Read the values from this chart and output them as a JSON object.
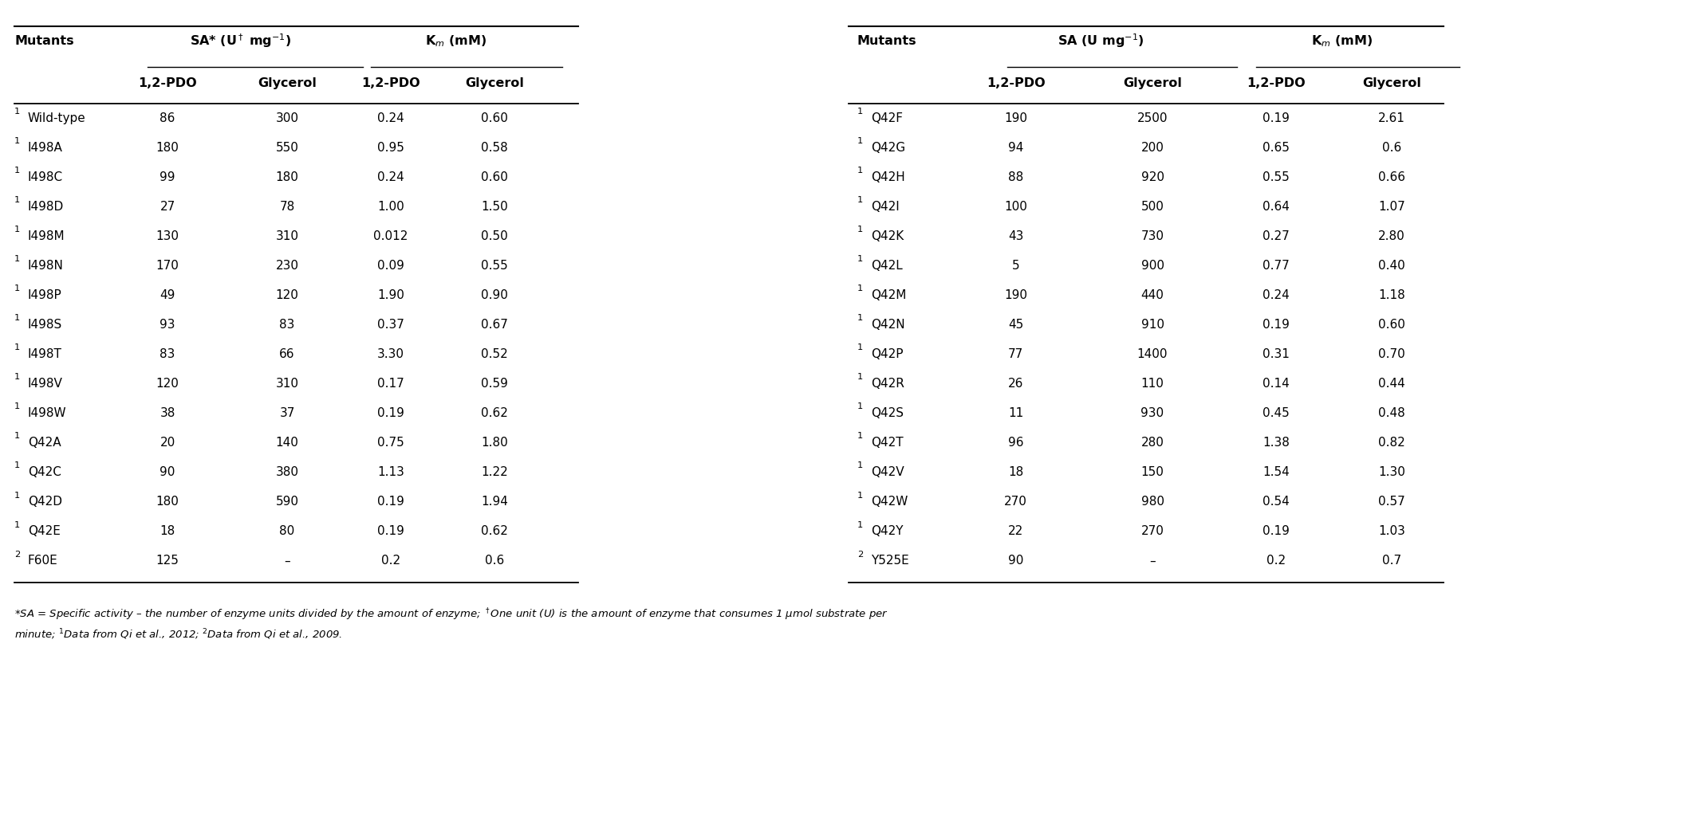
{
  "left_table": {
    "mutants": [
      "1Wild-type",
      "1I498A",
      "1I498C",
      "1I498D",
      "1I498M",
      "1I498N",
      "1I498P",
      "1I498S",
      "1I498T",
      "1I498V",
      "1I498W",
      "1Q42A",
      "1Q42C",
      "1Q42D",
      "1Q42E",
      "2F60E"
    ],
    "sa_pdo": [
      "86",
      "180",
      "99",
      "27",
      "130",
      "170",
      "49",
      "93",
      "83",
      "120",
      "38",
      "20",
      "90",
      "180",
      "18",
      "125"
    ],
    "sa_gly": [
      "300",
      "550",
      "180",
      "78",
      "310",
      "230",
      "120",
      "83",
      "66",
      "310",
      "37",
      "140",
      "380",
      "590",
      "80",
      "–"
    ],
    "km_pdo": [
      "0.24",
      "0.95",
      "0.24",
      "1.00",
      "0.012",
      "0.09",
      "1.90",
      "0.37",
      "3.30",
      "0.17",
      "0.19",
      "0.75",
      "1.13",
      "0.19",
      "0.19",
      "0.2"
    ],
    "km_gly": [
      "0.60",
      "0.58",
      "0.60",
      "1.50",
      "0.50",
      "0.55",
      "0.90",
      "0.67",
      "0.52",
      "0.59",
      "0.62",
      "1.80",
      "1.22",
      "1.94",
      "0.62",
      "0.6"
    ]
  },
  "right_table": {
    "mutants": [
      "1Q42F",
      "1Q42G",
      "1Q42H",
      "1Q42I",
      "1Q42K",
      "1Q42L",
      "1Q42M",
      "1Q42N",
      "1Q42P",
      "1Q42R",
      "1Q42S",
      "1Q42T",
      "1Q42V",
      "1Q42W",
      "1Q42Y",
      "2Y525E"
    ],
    "sa_pdo": [
      "190",
      "94",
      "88",
      "100",
      "43",
      "5",
      "190",
      "45",
      "77",
      "26",
      "11",
      "96",
      "18",
      "270",
      "22",
      "90"
    ],
    "sa_gly": [
      "2500",
      "200",
      "920",
      "500",
      "730",
      "900",
      "440",
      "910",
      "1400",
      "110",
      "930",
      "280",
      "150",
      "980",
      "270",
      "–"
    ],
    "km_pdo": [
      "0.19",
      "0.65",
      "0.55",
      "0.64",
      "0.27",
      "0.77",
      "0.24",
      "0.19",
      "0.31",
      "0.14",
      "0.45",
      "1.38",
      "1.54",
      "0.54",
      "0.19",
      "0.2"
    ],
    "km_gly": [
      "2.61",
      "0.6",
      "0.66",
      "1.07",
      "2.80",
      "0.40",
      "1.18",
      "0.60",
      "0.70",
      "0.44",
      "0.48",
      "0.82",
      "1.30",
      "0.57",
      "1.03",
      "0.7"
    ]
  },
  "bg_color": "#ffffff",
  "text_color": "#000000",
  "header_fontsize": 11.5,
  "data_fontsize": 11,
  "footnote_fontsize": 9.5,
  "fig_width": 21.19,
  "fig_height": 10.29,
  "fig_dpi": 100
}
